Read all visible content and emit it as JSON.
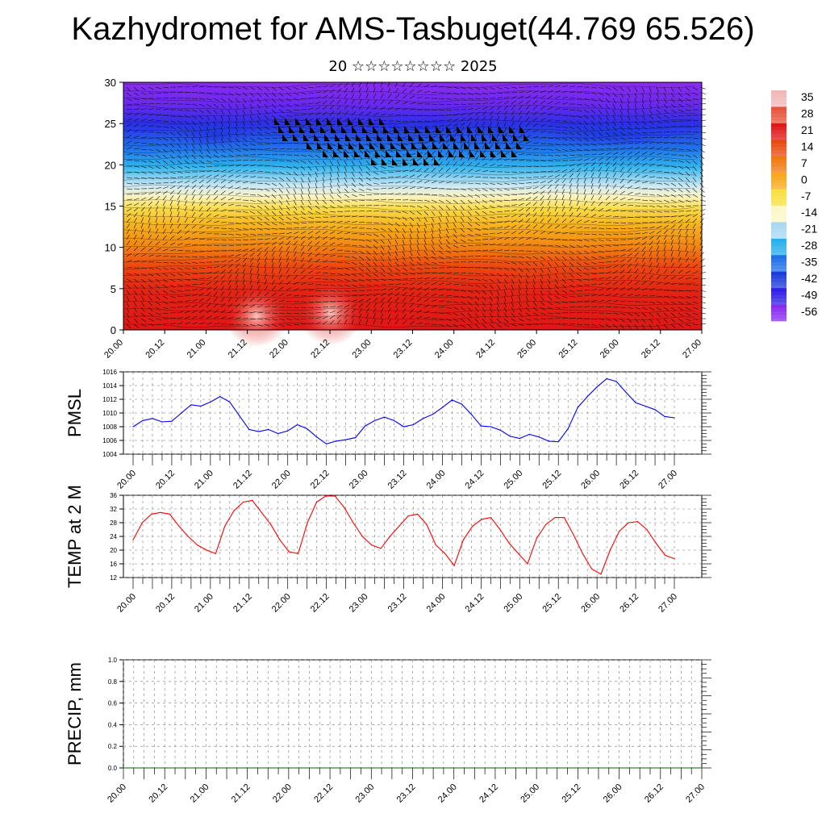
{
  "title": "Kazhydromet for AMS-Tasbuget(44.769 65.526)",
  "subtitle": "20 ☆☆☆☆☆☆☆☆ 2025",
  "time_ticks": [
    "20.00",
    "20.12",
    "21.00",
    "21.12",
    "22.00",
    "22.12",
    "23.00",
    "23.12",
    "24.00",
    "24.12",
    "25.00",
    "25.12",
    "26.00",
    "26.12",
    "27.00"
  ],
  "colorbar": {
    "labels": [
      "35",
      "28",
      "21",
      "14",
      "7",
      "0",
      "-7",
      "-14",
      "-21",
      "-28",
      "-35",
      "-42",
      "-49",
      "-56"
    ],
    "colors": [
      "#f2b8b8",
      "#e8553c",
      "#e01818",
      "#ea4a10",
      "#f07a10",
      "#f8a818",
      "#f8e040",
      "#fcf7c8",
      "#a8d8f0",
      "#28b0ec",
      "#2070e8",
      "#1d3cdc",
      "#3020e8",
      "#8a2cf0"
    ]
  },
  "chart_data": [
    {
      "type": "heatmap",
      "title": "",
      "xlabel": "",
      "ylabel": "",
      "x": [
        "20.00",
        "27.00"
      ],
      "ylim": [
        0,
        30
      ],
      "y_ticks": [
        0,
        5,
        10,
        15,
        20,
        25,
        30
      ],
      "color_scale": [
        -56,
        35
      ],
      "grid": false,
      "legend": "right"
    },
    {
      "type": "line",
      "ylabel": "PMSL",
      "ylim": [
        1004,
        1016
      ],
      "y_ticks": [
        1004,
        1006,
        1008,
        1010,
        1012,
        1014,
        1016
      ],
      "color": "#0000ff",
      "grid": true,
      "series": [
        {
          "values": [
            1008.0,
            1008.9,
            1009.2,
            1008.7,
            1008.8,
            1010.0,
            1011.2,
            1011.0,
            1011.6,
            1012.4,
            1011.6,
            1009.6,
            1007.6,
            1007.3,
            1007.6,
            1007.0,
            1007.4,
            1008.3,
            1007.7,
            1006.5,
            1005.5,
            1005.9,
            1006.1,
            1006.4,
            1008.1,
            1008.9,
            1009.4,
            1008.9,
            1008.0,
            1008.3,
            1009.2,
            1009.8,
            1010.8,
            1011.9,
            1011.3,
            1009.8,
            1008.1,
            1008.0,
            1007.5,
            1006.6,
            1006.3,
            1006.9,
            1006.5,
            1005.9,
            1005.8,
            1007.7,
            1010.8,
            1012.4,
            1013.8,
            1015.0,
            1014.6,
            1013.0,
            1011.5,
            1011.0,
            1010.5,
            1009.5,
            1009.3
          ]
        }
      ]
    },
    {
      "type": "line",
      "ylabel": "TEMP at 2 M",
      "ylim": [
        12,
        36
      ],
      "y_ticks": [
        12,
        16,
        20,
        24,
        28,
        32,
        36
      ],
      "color": "#ff0000",
      "grid": true,
      "series": [
        {
          "values": [
            23,
            28,
            30.5,
            31,
            30.5,
            27,
            24,
            21.5,
            20,
            19,
            27,
            31.5,
            34,
            34.5,
            31,
            27.5,
            23,
            19.5,
            19,
            28,
            34,
            35.8,
            35.8,
            32.5,
            28,
            24,
            21.5,
            20.5,
            24,
            27,
            30,
            30.5,
            27.5,
            21.5,
            19,
            15.5,
            23,
            27,
            29,
            29.5,
            26,
            22,
            19,
            16,
            23.5,
            27.5,
            29.5,
            29.5,
            24.5,
            19,
            14.5,
            13,
            20,
            25.5,
            28,
            28.3,
            26,
            22,
            18.5,
            17.5
          ]
        }
      ]
    },
    {
      "type": "line",
      "ylabel": "PRECIP, mm",
      "ylim": [
        0,
        1.0
      ],
      "y_ticks": [
        0.0,
        0.2,
        0.4,
        0.6,
        0.8,
        1.0
      ],
      "color": "#006400",
      "grid": true,
      "series": [
        {
          "values": [
            0,
            0,
            0,
            0,
            0,
            0,
            0,
            0,
            0,
            0,
            0,
            0,
            0,
            0,
            0,
            0,
            0,
            0,
            0,
            0,
            0,
            0,
            0,
            0,
            0,
            0,
            0,
            0,
            0,
            0,
            0,
            0,
            0,
            0,
            0,
            0,
            0,
            0,
            0,
            0,
            0,
            0,
            0,
            0,
            0,
            0,
            0,
            0,
            0,
            0,
            0,
            0,
            0,
            0,
            0,
            0,
            0
          ]
        }
      ]
    }
  ]
}
